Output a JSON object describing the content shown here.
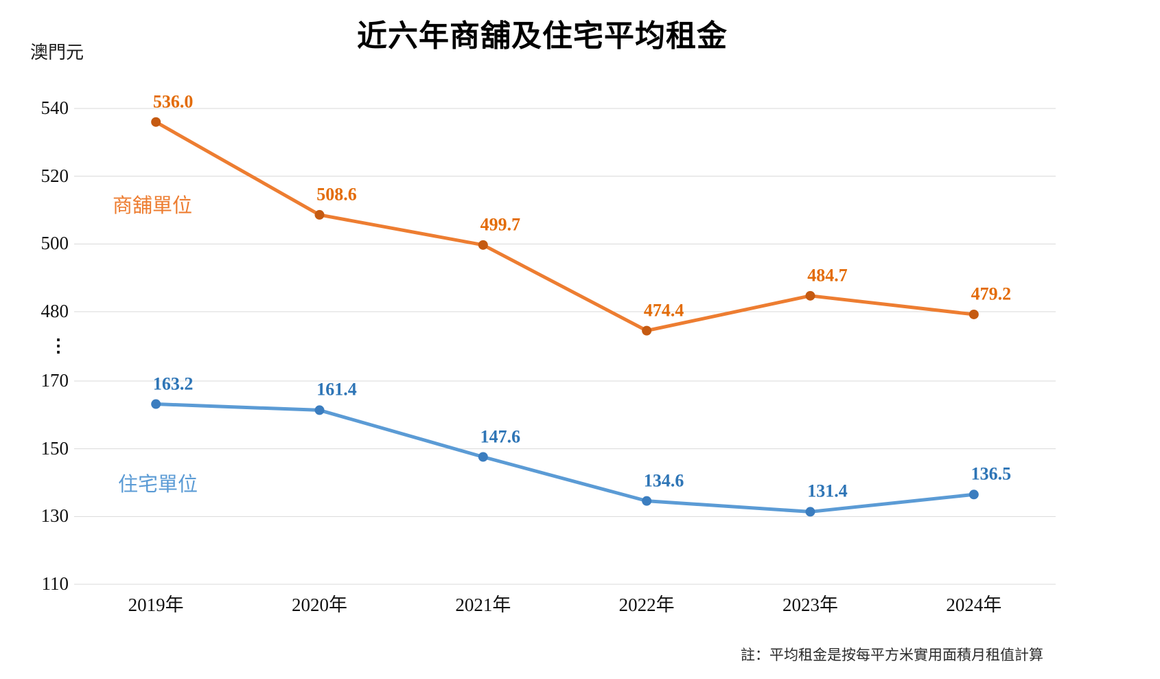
{
  "chart_data": {
    "type": "line",
    "title": "近六年商舖及住宅平均租金",
    "ylabel": "澳門元",
    "xlabel": "",
    "grid": true,
    "legend_position": "inline-labels",
    "categories": [
      "2019年",
      "2020年",
      "2021年",
      "2022年",
      "2023年",
      "2024年"
    ],
    "series": [
      {
        "key": "shops",
        "name": "商舖單位",
        "values": [
          536.0,
          508.6,
          499.7,
          474.4,
          484.7,
          479.2
        ],
        "line_color": "#ED7D31",
        "marker_color": "#C55A11",
        "label_color": "#E36C09"
      },
      {
        "key": "residential",
        "name": "住宅單位",
        "values": [
          163.2,
          161.4,
          147.6,
          134.6,
          131.4,
          136.5
        ],
        "line_color": "#5B9BD5",
        "marker_color": "#3B7DBF",
        "label_color": "#2E75B6"
      }
    ],
    "y_axis": {
      "broken": true,
      "break_symbol": "⋮",
      "segments": [
        {
          "range": [
            480,
            540
          ],
          "ticks": [
            540,
            520,
            500,
            480
          ]
        },
        {
          "range": [
            110,
            170
          ],
          "ticks": [
            170,
            150,
            130,
            110
          ]
        }
      ]
    },
    "gridline_color": "#D9D9D9",
    "note": "註：平均租金是按每平方米實用面積月租值計算"
  }
}
